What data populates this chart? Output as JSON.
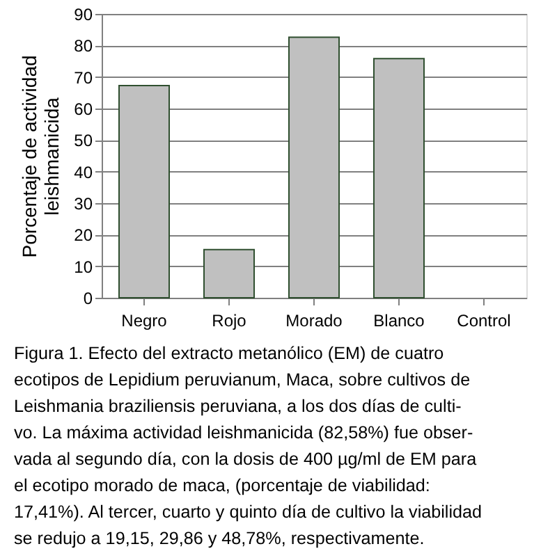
{
  "chart_data": {
    "type": "bar",
    "ylabel": "Porcentaje de actividad\nleishmanicida",
    "categories": [
      "Negro",
      "Rojo",
      "Morado",
      "Blanco",
      "Control"
    ],
    "values": [
      67.3,
      15.3,
      82.6,
      75.8,
      null
    ],
    "color": "#c0c0c0",
    "ylim": [
      0,
      90
    ],
    "yticks": [
      0,
      10,
      20,
      30,
      40,
      50,
      60,
      70,
      80,
      90
    ],
    "grid": "y",
    "annotations": [
      "Figura 1. Efecto del extracto metanólico (EM) de cuatro",
      "ecotipos de Lepidium peruvianum, Maca, sobre cultivos de",
      "Leishmania braziliensis peruviana, a los dos días de culti-",
      "vo. La máxima actividad leishmanicida (82,58%) fue obser-",
      "vada al segundo día, con la dosis de 400 µg/ml de EM para",
      "el ecotipo morado de maca, (porcentaje de viabilidad:",
      "17,41%). Al tercer, cuarto y quinto día de cultivo la viabilidad",
      "se redujo a 19,15, 29,86 y 48,78%, respectivamente."
    ]
  }
}
